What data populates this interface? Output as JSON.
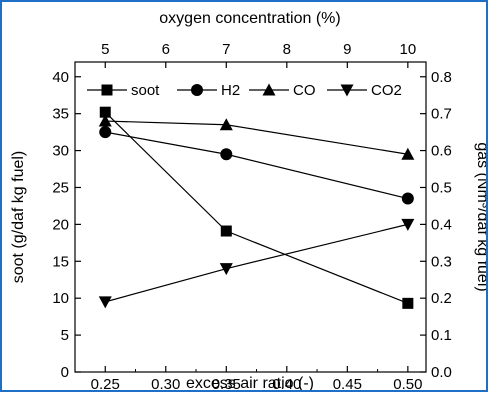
{
  "chart_data": {
    "type": "line",
    "x_label": "excess air ratio (-)",
    "x_ticks": [
      "0.25",
      "0.30",
      "0.35",
      "0.40",
      "0.45",
      "0.50"
    ],
    "x_range": [
      0.225,
      0.515
    ],
    "top_label": "oxygen concentration (%)",
    "top_ticks": [
      "5",
      "6",
      "7",
      "8",
      "9",
      "10"
    ],
    "top_tick_positions": [
      0.25,
      0.3,
      0.35,
      0.4,
      0.45,
      0.5
    ],
    "left_label": "soot (g/daf kg fuel)",
    "left_ticks": [
      "0",
      "5",
      "10",
      "15",
      "20",
      "25",
      "30",
      "35",
      "40"
    ],
    "left_range": [
      0,
      42
    ],
    "right_label": "gas (Nm³/daf kg fuel)",
    "right_ticks": [
      "0.0",
      "0.1",
      "0.2",
      "0.3",
      "0.4",
      "0.5",
      "0.6",
      "0.7",
      "0.8"
    ],
    "right_range": [
      0,
      0.84
    ],
    "legend_position": "top",
    "series": [
      {
        "name": "soot",
        "axis": "left",
        "marker": "square",
        "x": [
          0.25,
          0.35,
          0.5
        ],
        "values": [
          35.2,
          19.1,
          9.3
        ]
      },
      {
        "name": "H2",
        "axis": "right",
        "marker": "circle",
        "x": [
          0.25,
          0.35,
          0.5
        ],
        "values": [
          0.65,
          0.59,
          0.47
        ]
      },
      {
        "name": "CO",
        "axis": "right",
        "marker": "triangle-up",
        "x": [
          0.25,
          0.35,
          0.5
        ],
        "values": [
          0.68,
          0.67,
          0.59
        ]
      },
      {
        "name": "CO2",
        "axis": "right",
        "marker": "triangle-down",
        "x": [
          0.25,
          0.35,
          0.5
        ],
        "values": [
          0.19,
          0.28,
          0.4
        ]
      }
    ]
  }
}
